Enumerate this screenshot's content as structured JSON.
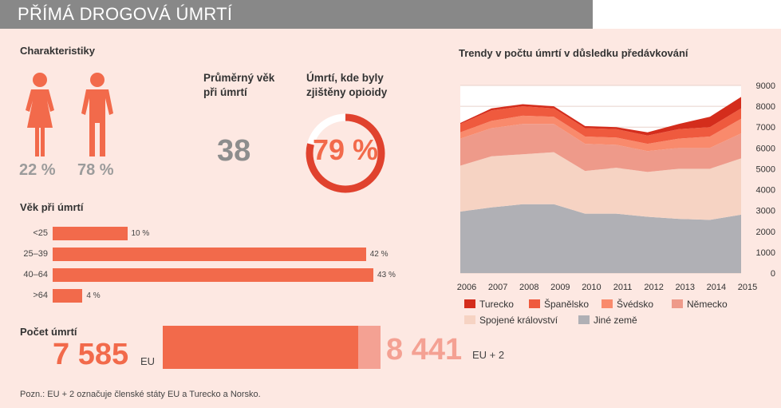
{
  "header": {
    "title": "PŘÍMÁ DROGOVÁ ÚMRTÍ"
  },
  "characteristics": {
    "heading": "Charakteristiky",
    "female_pct": "22 %",
    "male_pct": "78 %",
    "avg_age_label_line1": "Průměrný věk",
    "avg_age_label_line2": "při úmrtí",
    "avg_age_value": "38",
    "opioid_label_line1": "Úmrtí, kde byly",
    "opioid_label_line2": "zjištěny opioidy",
    "opioid_value": "79 %",
    "opioid_fraction": 0.79
  },
  "age": {
    "heading": "Věk při úmrtí",
    "groups": [
      {
        "label": "<25",
        "value_label": "10 %",
        "value": 10
      },
      {
        "label": "25–39",
        "value_label": "42 %",
        "value": 42
      },
      {
        "label": "40–64",
        "value_label": "43 %",
        "value": 43
      },
      {
        "label": ">64",
        "value_label": "4 %",
        "value": 4
      }
    ]
  },
  "deaths": {
    "heading": "Počet úmrtí",
    "eu_value": "7 585",
    "eu_label": "EU",
    "eu2_value": "8 441",
    "eu2_label": "EU + 2",
    "eu_number": 7585,
    "eu2_number": 8441
  },
  "note": "Pozn.: EU + 2 označuje členské státy EU a Turecko a Norsko.",
  "chart_data": {
    "type": "area",
    "title": "Trendy v počtu úmrtí v důsledku předávkování",
    "x": [
      2006,
      2007,
      2008,
      2009,
      2010,
      2011,
      2012,
      2013,
      2014,
      2015
    ],
    "ylim": [
      0,
      9000
    ],
    "yticks": [
      "0",
      "1000",
      "2000",
      "3000",
      "4000",
      "5000",
      "6000",
      "7000",
      "8000",
      "9000"
    ],
    "stacked": true,
    "grid": true,
    "legend_position": "bottom",
    "series": [
      {
        "name": "Jiné země",
        "color": "#b0b0b5",
        "values": [
          2950,
          3150,
          3300,
          3300,
          2850,
          2850,
          2700,
          2600,
          2550,
          2800
        ]
      },
      {
        "name": "Spojené království",
        "color": "#f6d3c3",
        "values": [
          2200,
          2450,
          2400,
          2500,
          2050,
          2200,
          2150,
          2400,
          2450,
          2700
        ]
      },
      {
        "name": "Německo",
        "color": "#ee9a8a",
        "values": [
          1300,
          1350,
          1450,
          1350,
          1300,
          1100,
          1000,
          1000,
          1000,
          1200
        ]
      },
      {
        "name": "Švédsko",
        "color": "#f98a6c",
        "values": [
          300,
          350,
          400,
          350,
          350,
          350,
          350,
          450,
          550,
          700
        ]
      },
      {
        "name": "Španělsko",
        "color": "#ef5a3e",
        "values": [
          400,
          500,
          450,
          400,
          400,
          400,
          400,
          450,
          450,
          500
        ]
      },
      {
        "name": "Turecko",
        "color": "#d42d1c",
        "values": [
          50,
          100,
          100,
          100,
          100,
          100,
          150,
          250,
          500,
          550
        ]
      }
    ]
  },
  "legend_order": [
    "Turecko",
    "Španělsko",
    "Švédsko",
    "Německo",
    "Spojené království",
    "Jiné země"
  ],
  "colors": {
    "accent": "#f26a4b",
    "accent_light": "#f4a193",
    "ring": "#e0422e",
    "gray": "#888888"
  }
}
